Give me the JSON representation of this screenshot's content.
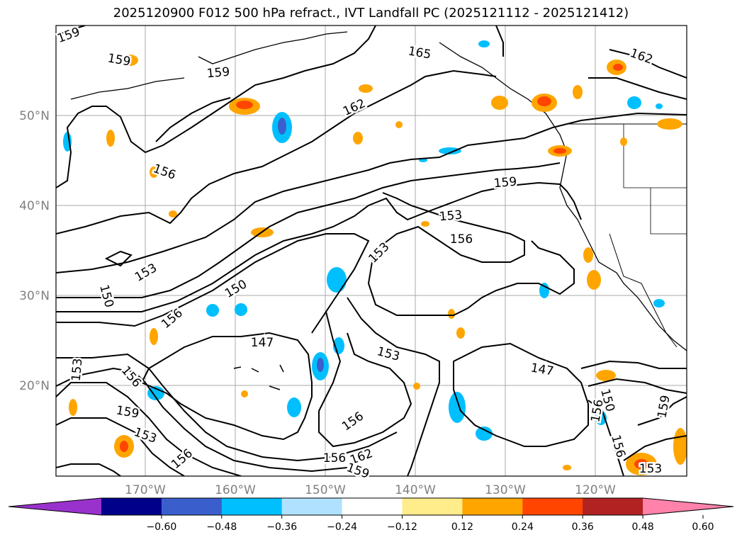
{
  "title": "2025120900 F012 500 hPa refract., IVT Landfall PC (2025121112 - 2025121412)",
  "lat_labels": [
    "50°N",
    "40°N",
    "30°N",
    "20°N"
  ],
  "lon_labels": [
    "170°W",
    "160°W",
    "150°W",
    "140°W",
    "130°W",
    "120°W"
  ],
  "contour_labels": [
    "159",
    "159",
    "159",
    "165",
    "162",
    "162",
    "156",
    "159",
    "153",
    "156",
    "153",
    "150",
    "150",
    "156",
    "147",
    "153",
    "147",
    "153",
    "156",
    "159",
    "153",
    "156",
    "156",
    "156",
    "162",
    "159",
    "156",
    "150",
    "153",
    "156",
    "159",
    "153"
  ],
  "colorbar": {
    "colors": [
      "#9932cc",
      "#00008b",
      "#3a5fcd",
      "#00bfff",
      "#b0e2ff",
      "#ffffff",
      "#ffec8b",
      "#ffa500",
      "#ff4500",
      "#b22222",
      "#ff82ab"
    ],
    "ticks": [
      "−0.60",
      "−0.48",
      "−0.36",
      "−0.24",
      "−0.12",
      "0.12",
      "0.24",
      "0.36",
      "0.48",
      "0.60"
    ]
  }
}
